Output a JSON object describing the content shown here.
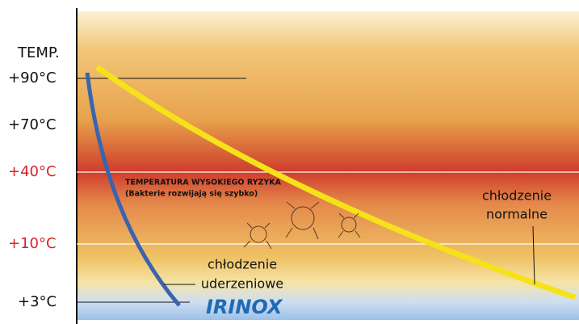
{
  "axis_label": "TEMP.",
  "ticks": [
    "+90°C",
    "+70°C",
    "+40°C",
    "+10°C",
    "+3°C"
  ],
  "risk_zone": {
    "title": "TEMPERATURA WYSOKIEGO RYZYKA",
    "subtitle": "(Bakterie rozwijają się szybko)"
  },
  "curves": {
    "normal": [
      "chłodzenie",
      "normalne"
    ],
    "blast": [
      "chłodzenie",
      "uderzeniowe"
    ]
  },
  "logo": "IRINOX"
}
